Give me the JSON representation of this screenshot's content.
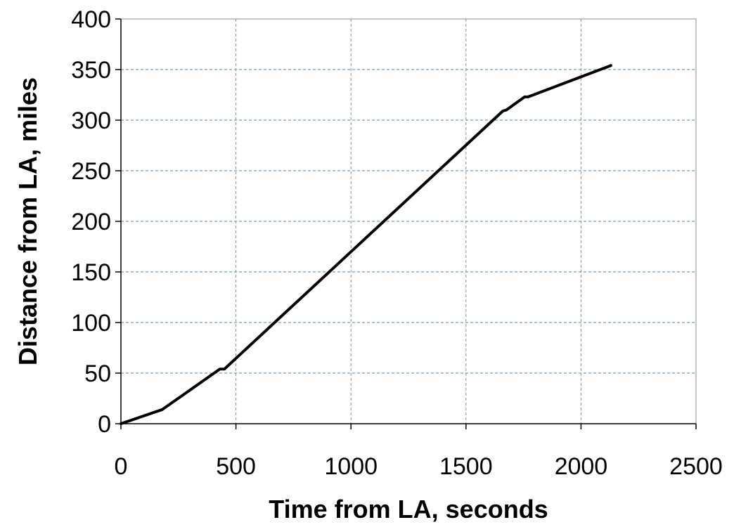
{
  "chart_data": {
    "type": "line",
    "title": "",
    "xlabel": "Time from LA, seconds",
    "ylabel": "Distance from LA, miles",
    "xlim": [
      0,
      2500
    ],
    "ylim": [
      0,
      400
    ],
    "xticks": [
      0,
      500,
      1000,
      1500,
      2000,
      2500
    ],
    "yticks": [
      0,
      50,
      100,
      150,
      200,
      250,
      300,
      350,
      400
    ],
    "grid": true,
    "legend": "none",
    "colors": {
      "line": "#000000",
      "grid": "#4f81bd",
      "axis": "#000000"
    },
    "series": [
      {
        "x": [
          0,
          180,
          430,
          450,
          1660,
          1675,
          1755,
          1770,
          2130
        ],
        "y": [
          0,
          14,
          54,
          54,
          309,
          310,
          323,
          323,
          354
        ]
      }
    ]
  }
}
